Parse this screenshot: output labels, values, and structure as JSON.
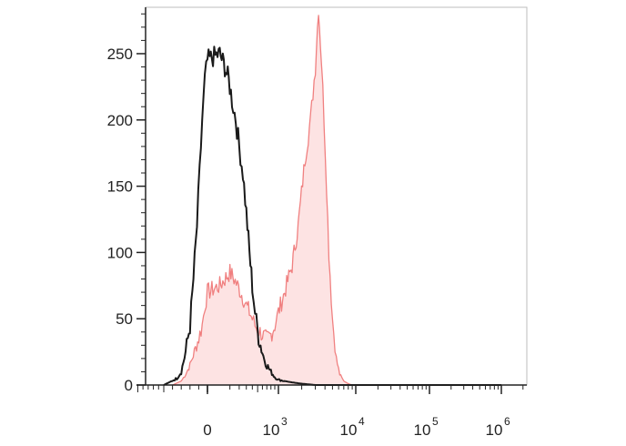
{
  "chart_data": {
    "type": "area",
    "title": "",
    "xlabel": "",
    "ylabel": "",
    "x_scale": "biexponential",
    "ylim": [
      0,
      285
    ],
    "grid": false,
    "legend": "none",
    "y_ticks": [
      0,
      50,
      100,
      150,
      200,
      250
    ],
    "y_tick_labels": [
      "0",
      "50",
      "100",
      "150",
      "200",
      "250"
    ],
    "x_ticks": [
      {
        "value": 0,
        "base": "0",
        "exp": ""
      },
      {
        "value": 1000,
        "base": "10",
        "exp": "3"
      },
      {
        "value": 10000,
        "base": "10",
        "exp": "4"
      },
      {
        "value": 100000,
        "base": "10",
        "exp": "5"
      },
      {
        "value": 1000000,
        "base": "10",
        "exp": "6"
      }
    ],
    "series": [
      {
        "style": "outline",
        "color": "#1a1a1a",
        "x": [
          -500,
          -350,
          -300,
          -250,
          -200,
          -160,
          -120,
          -90,
          -60,
          -30,
          0,
          30,
          60,
          90,
          120,
          160,
          200,
          250,
          300,
          350,
          400,
          450,
          500,
          560,
          620,
          700,
          800,
          900,
          1000,
          1200,
          1500,
          2000,
          3000,
          5000,
          10000,
          1000000
        ],
        "y": [
          0,
          5,
          10,
          25,
          45,
          80,
          120,
          160,
          200,
          230,
          245,
          250,
          240,
          230,
          215,
          200,
          180,
          160,
          130,
          100,
          75,
          55,
          40,
          30,
          22,
          15,
          10,
          6,
          4,
          3,
          2,
          1,
          0,
          0,
          0,
          0
        ]
      },
      {
        "style": "filled",
        "color": "#f08080",
        "fill": "#fde3e3",
        "x": [
          -400,
          -300,
          -250,
          -200,
          -150,
          -100,
          -60,
          -30,
          0,
          30,
          60,
          100,
          140,
          180,
          220,
          260,
          300,
          350,
          400,
          450,
          500,
          600,
          700,
          800,
          900,
          1000,
          1200,
          1500,
          1800,
          2200,
          2600,
          3000,
          3300,
          3600,
          3900,
          4200,
          4500,
          5000,
          5600,
          6200,
          7000,
          8000,
          9000,
          10000,
          12000,
          20000,
          1000000
        ],
        "y": [
          0,
          3,
          8,
          15,
          25,
          35,
          45,
          60,
          70,
          75,
          80,
          85,
          80,
          75,
          70,
          65,
          60,
          55,
          50,
          45,
          42,
          38,
          35,
          38,
          45,
          55,
          70,
          90,
          120,
          170,
          200,
          240,
          285,
          245,
          200,
          150,
          100,
          50,
          20,
          8,
          3,
          1,
          0,
          0,
          0,
          0,
          0
        ]
      }
    ]
  }
}
